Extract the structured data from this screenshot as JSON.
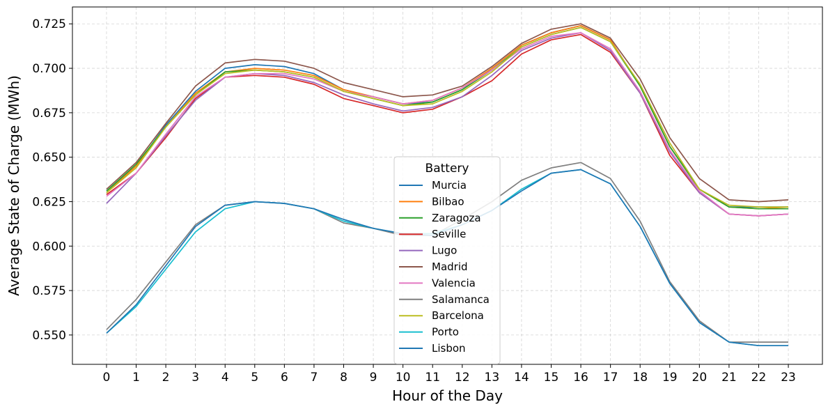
{
  "chart_data": {
    "type": "line",
    "title": "",
    "xlabel": "Hour of the Day",
    "ylabel": "Average State of Charge (MWh)",
    "x": [
      0,
      1,
      2,
      3,
      4,
      5,
      6,
      7,
      8,
      9,
      10,
      11,
      12,
      13,
      14,
      15,
      16,
      17,
      18,
      19,
      20,
      21,
      22,
      23
    ],
    "xlim": [
      -1.15,
      24.15
    ],
    "ylim": [
      0.5335,
      0.7345
    ],
    "yticks": [
      0.55,
      0.575,
      0.6,
      0.625,
      0.65,
      0.675,
      0.7,
      0.725
    ],
    "ytick_labels": [
      "0.550",
      "0.575",
      "0.600",
      "0.625",
      "0.650",
      "0.675",
      "0.700",
      "0.725"
    ],
    "xtick_labels": [
      "0",
      "1",
      "2",
      "3",
      "4",
      "5",
      "6",
      "7",
      "8",
      "9",
      "10",
      "11",
      "12",
      "13",
      "14",
      "15",
      "16",
      "17",
      "18",
      "19",
      "20",
      "21",
      "22",
      "23"
    ],
    "grid": true,
    "legend": {
      "title": "Battery",
      "placement": "center-bottom"
    },
    "series": [
      {
        "name": "Murcia",
        "color": "#1f77b4",
        "values": [
          0.631,
          0.645,
          0.668,
          0.687,
          0.7,
          0.702,
          0.701,
          0.697,
          0.688,
          0.684,
          0.68,
          0.681,
          0.688,
          0.7,
          0.713,
          0.72,
          0.724,
          0.716,
          0.69,
          0.656,
          0.632,
          0.622,
          0.622,
          0.622
        ]
      },
      {
        "name": "Bilbao",
        "color": "#ff7f0e",
        "values": [
          0.63,
          0.645,
          0.667,
          0.686,
          0.698,
          0.7,
          0.699,
          0.696,
          0.688,
          0.684,
          0.68,
          0.682,
          0.689,
          0.7,
          0.713,
          0.72,
          0.724,
          0.716,
          0.69,
          0.656,
          0.632,
          0.622,
          0.621,
          0.622
        ]
      },
      {
        "name": "Zaragoza",
        "color": "#2ca02c",
        "values": [
          0.631,
          0.646,
          0.667,
          0.685,
          0.698,
          0.699,
          0.698,
          0.695,
          0.687,
          0.683,
          0.679,
          0.681,
          0.688,
          0.699,
          0.712,
          0.719,
          0.723,
          0.715,
          0.69,
          0.656,
          0.632,
          0.622,
          0.621,
          0.621
        ]
      },
      {
        "name": "Seville",
        "color": "#d62728",
        "values": [
          0.629,
          0.641,
          0.661,
          0.683,
          0.695,
          0.696,
          0.695,
          0.691,
          0.683,
          0.679,
          0.675,
          0.677,
          0.684,
          0.693,
          0.708,
          0.716,
          0.719,
          0.709,
          0.686,
          0.651,
          0.63,
          0.618,
          0.617,
          0.618
        ]
      },
      {
        "name": "Lugo",
        "color": "#9467bd",
        "values": [
          0.624,
          0.641,
          0.662,
          0.682,
          0.695,
          0.697,
          0.696,
          0.692,
          0.685,
          0.68,
          0.676,
          0.678,
          0.684,
          0.696,
          0.71,
          0.717,
          0.72,
          0.71,
          0.686,
          0.653,
          0.63,
          0.618,
          0.617,
          0.618
        ]
      },
      {
        "name": "Madrid",
        "color": "#8c564b",
        "values": [
          0.632,
          0.647,
          0.669,
          0.69,
          0.703,
          0.705,
          0.704,
          0.7,
          0.692,
          0.688,
          0.684,
          0.685,
          0.69,
          0.701,
          0.714,
          0.722,
          0.725,
          0.717,
          0.694,
          0.661,
          0.638,
          0.626,
          0.625,
          0.626
        ]
      },
      {
        "name": "Valencia",
        "color": "#e377c2",
        "values": [
          0.628,
          0.641,
          0.663,
          0.684,
          0.695,
          0.697,
          0.697,
          0.694,
          0.687,
          0.684,
          0.68,
          0.682,
          0.689,
          0.699,
          0.711,
          0.718,
          0.72,
          0.711,
          0.687,
          0.654,
          0.631,
          0.618,
          0.617,
          0.618
        ]
      },
      {
        "name": "Salamanca",
        "color": "#7f7f7f",
        "values": [
          0.553,
          0.57,
          0.591,
          0.612,
          0.623,
          0.625,
          0.624,
          0.621,
          0.613,
          0.61,
          0.606,
          0.606,
          0.615,
          0.625,
          0.637,
          0.644,
          0.647,
          0.638,
          0.614,
          0.58,
          0.558,
          0.546,
          0.546,
          0.546
        ]
      },
      {
        "name": "Barcelona",
        "color": "#bcbd22",
        "values": [
          0.63,
          0.644,
          0.667,
          0.685,
          0.697,
          0.699,
          0.698,
          0.695,
          0.687,
          0.683,
          0.679,
          0.68,
          0.687,
          0.698,
          0.712,
          0.719,
          0.723,
          0.715,
          0.691,
          0.658,
          0.632,
          0.623,
          0.622,
          0.622
        ]
      },
      {
        "name": "Porto",
        "color": "#17becf",
        "values": [
          0.551,
          0.566,
          0.587,
          0.608,
          0.621,
          0.625,
          0.624,
          0.621,
          0.614,
          0.61,
          0.607,
          0.607,
          0.612,
          0.62,
          0.632,
          0.641,
          0.643,
          0.635,
          0.611,
          0.579,
          0.557,
          0.546,
          0.544,
          0.544
        ]
      },
      {
        "name": "Lisbon",
        "color": "#1f77b4",
        "values": [
          0.551,
          0.567,
          0.589,
          0.611,
          0.623,
          0.625,
          0.624,
          0.621,
          0.615,
          0.61,
          0.607,
          0.606,
          0.612,
          0.62,
          0.631,
          0.641,
          0.643,
          0.635,
          0.611,
          0.579,
          0.557,
          0.546,
          0.544,
          0.544
        ]
      }
    ]
  }
}
